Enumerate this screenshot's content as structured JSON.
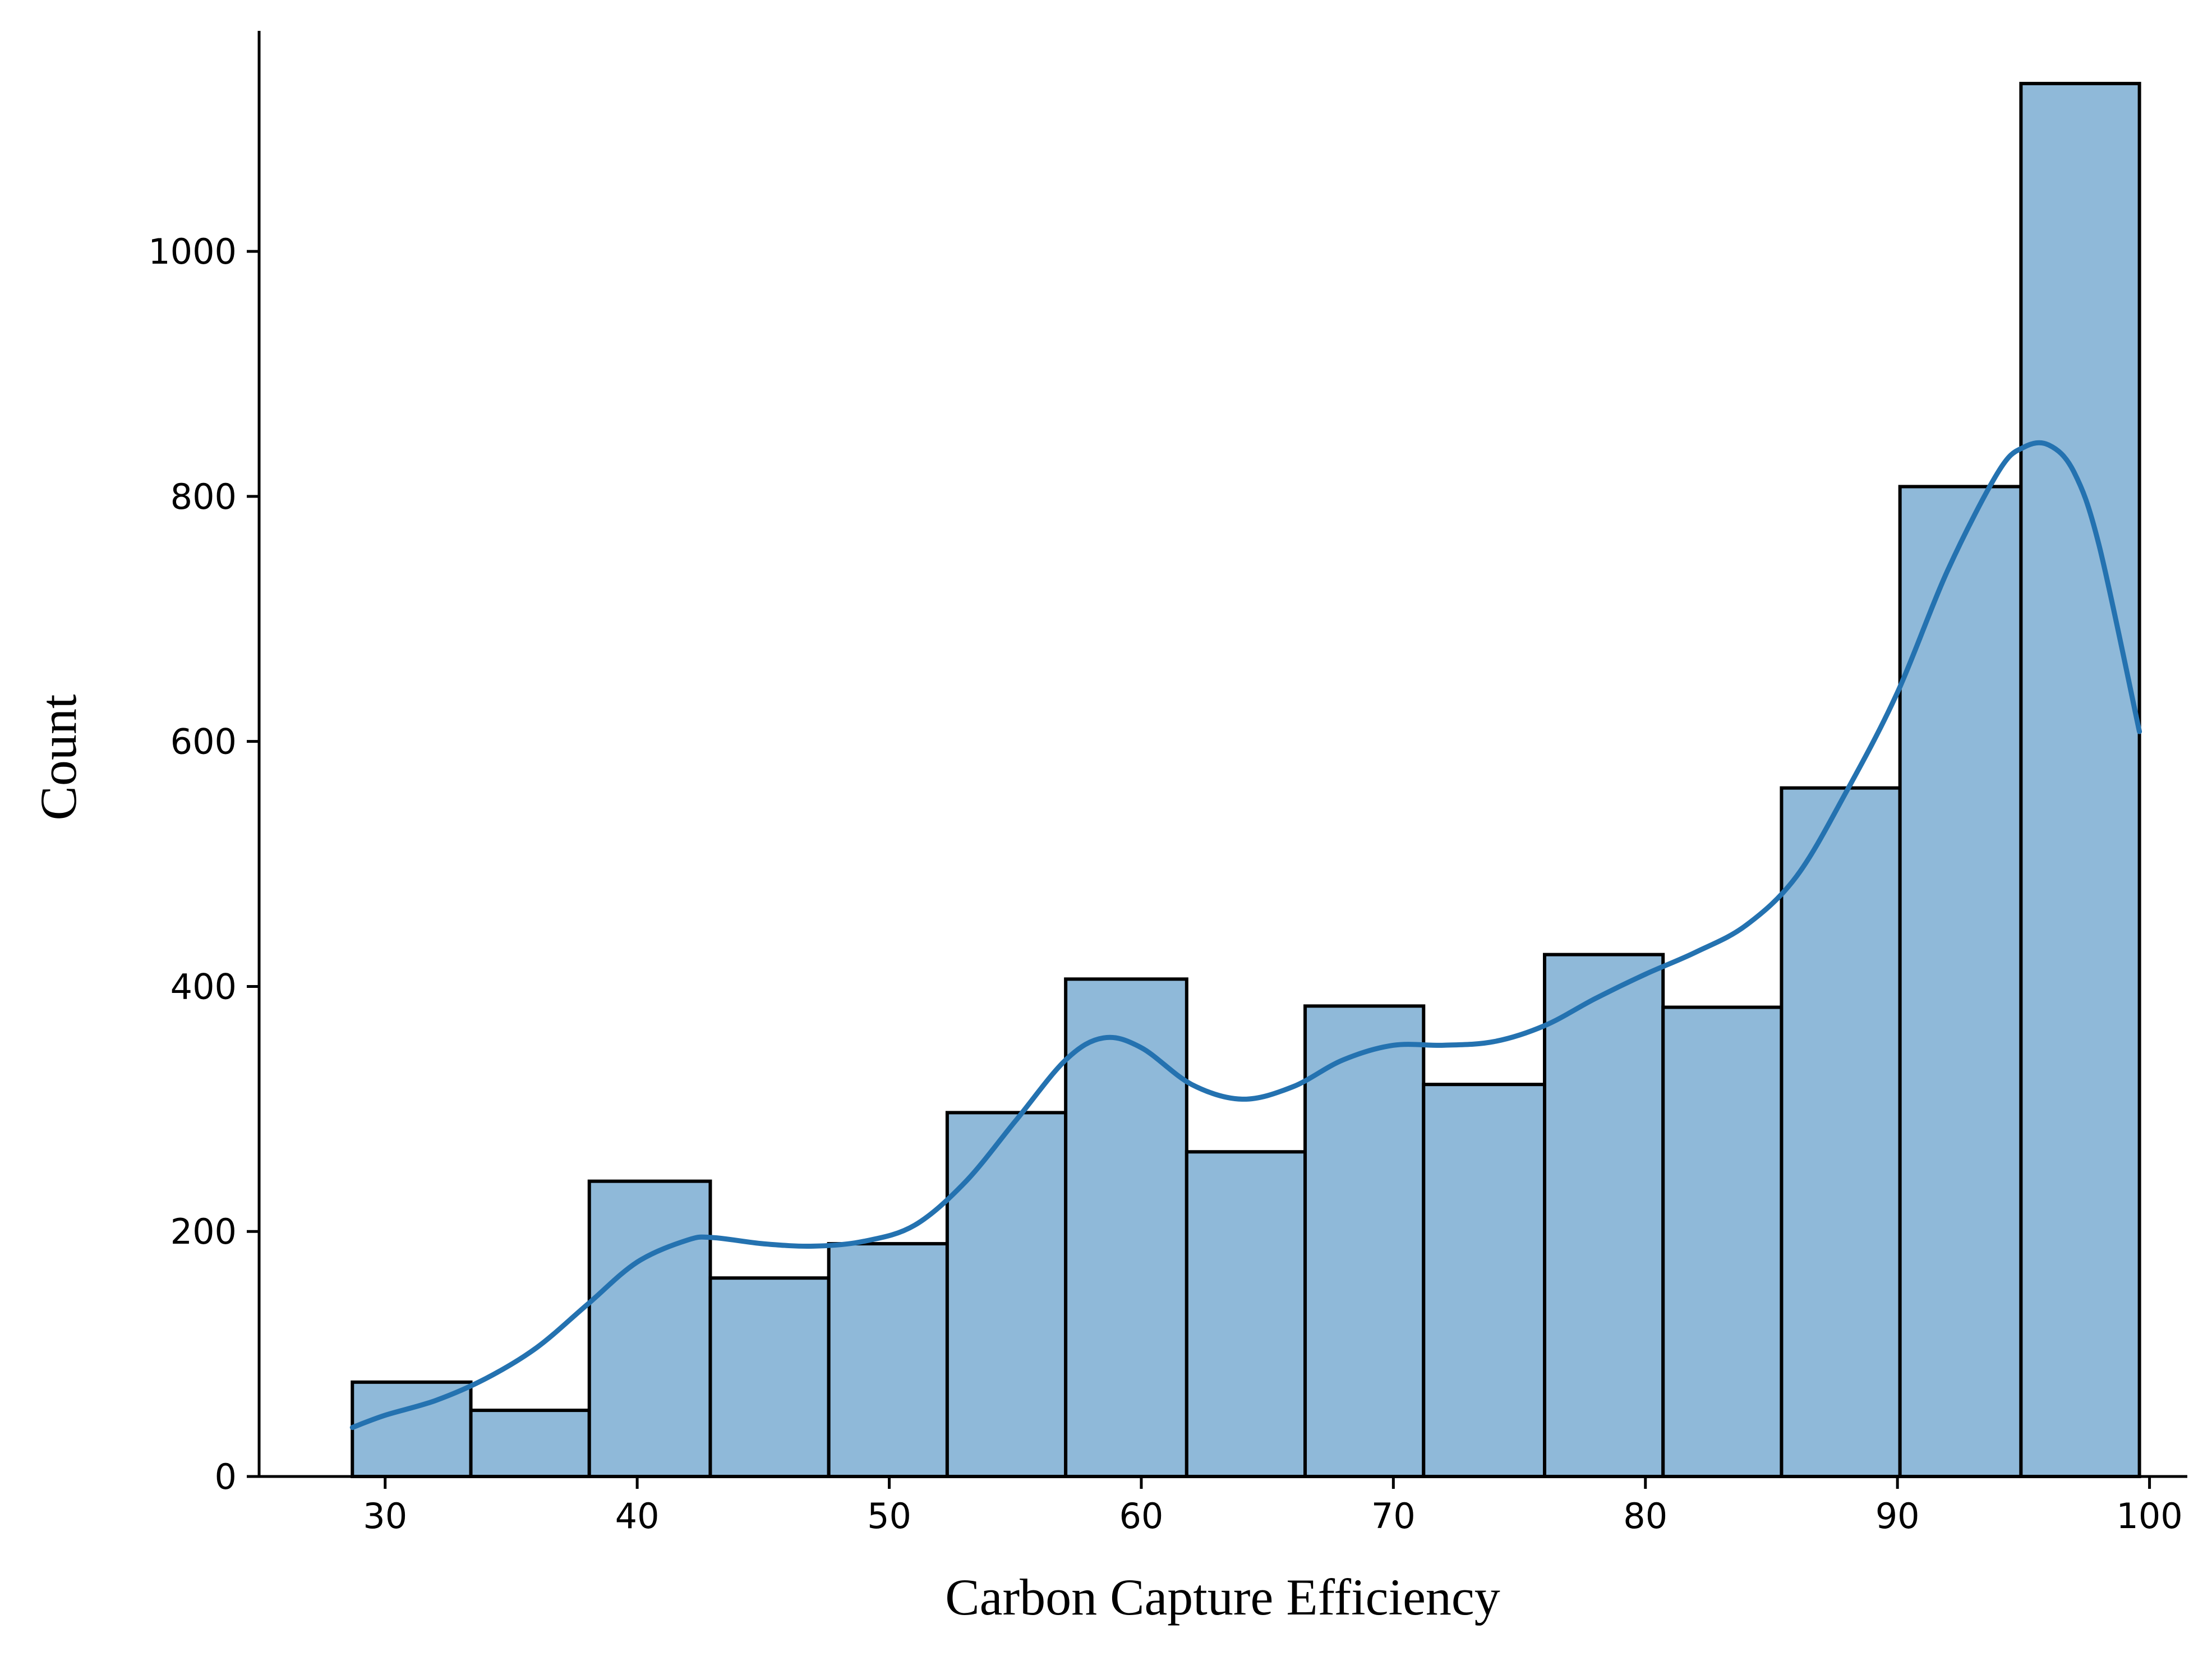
{
  "chart_data": {
    "type": "bar",
    "subtype": "histogram_with_kde",
    "xlabel": "Carbon Capture Efficiency",
    "ylabel": "Count",
    "xlim": [
      25,
      101.5
    ],
    "ylim": [
      0,
      1180
    ],
    "xticks": [
      30,
      40,
      50,
      60,
      70,
      80,
      90,
      100
    ],
    "yticks": [
      0,
      200,
      400,
      600,
      800,
      1000
    ],
    "grid": false,
    "legend": "none",
    "bins": [
      {
        "x0": 28.7,
        "x1": 33.4,
        "count": 77
      },
      {
        "x0": 33.4,
        "x1": 38.1,
        "count": 54
      },
      {
        "x0": 38.1,
        "x1": 42.9,
        "count": 241
      },
      {
        "x0": 42.9,
        "x1": 47.6,
        "count": 162
      },
      {
        "x0": 47.6,
        "x1": 52.3,
        "count": 190
      },
      {
        "x0": 52.3,
        "x1": 57.0,
        "count": 297
      },
      {
        "x0": 57.0,
        "x1": 61.8,
        "count": 406
      },
      {
        "x0": 61.8,
        "x1": 66.5,
        "count": 265
      },
      {
        "x0": 66.5,
        "x1": 71.2,
        "count": 384
      },
      {
        "x0": 71.2,
        "x1": 76.0,
        "count": 320
      },
      {
        "x0": 76.0,
        "x1": 80.7,
        "count": 426
      },
      {
        "x0": 80.7,
        "x1": 85.4,
        "count": 383
      },
      {
        "x0": 85.4,
        "x1": 90.1,
        "count": 562
      },
      {
        "x0": 90.1,
        "x1": 94.9,
        "count": 808
      },
      {
        "x0": 94.9,
        "x1": 99.6,
        "count": 1137
      }
    ],
    "kde": {
      "x": [
        28.7,
        30,
        32,
        34,
        36,
        38,
        40,
        42,
        43,
        45,
        47,
        49,
        51,
        53,
        55,
        57,
        58.5,
        60,
        62,
        64,
        66,
        68,
        70,
        72,
        74,
        76,
        78,
        80,
        82,
        84,
        86,
        88,
        90,
        92,
        94,
        95,
        96,
        97,
        98,
        99.6
      ],
      "y": [
        40,
        50,
        62,
        80,
        105,
        140,
        175,
        193,
        195,
        190,
        188,
        192,
        205,
        240,
        290,
        340,
        358,
        350,
        320,
        308,
        318,
        340,
        352,
        352,
        355,
        368,
        390,
        410,
        428,
        450,
        490,
        560,
        640,
        740,
        820,
        840,
        842,
        820,
        760,
        608
      ]
    },
    "colors": {
      "bar_fill": "#8FB9D9",
      "bar_edge": "#000000",
      "kde_line": "#2472B0"
    }
  }
}
